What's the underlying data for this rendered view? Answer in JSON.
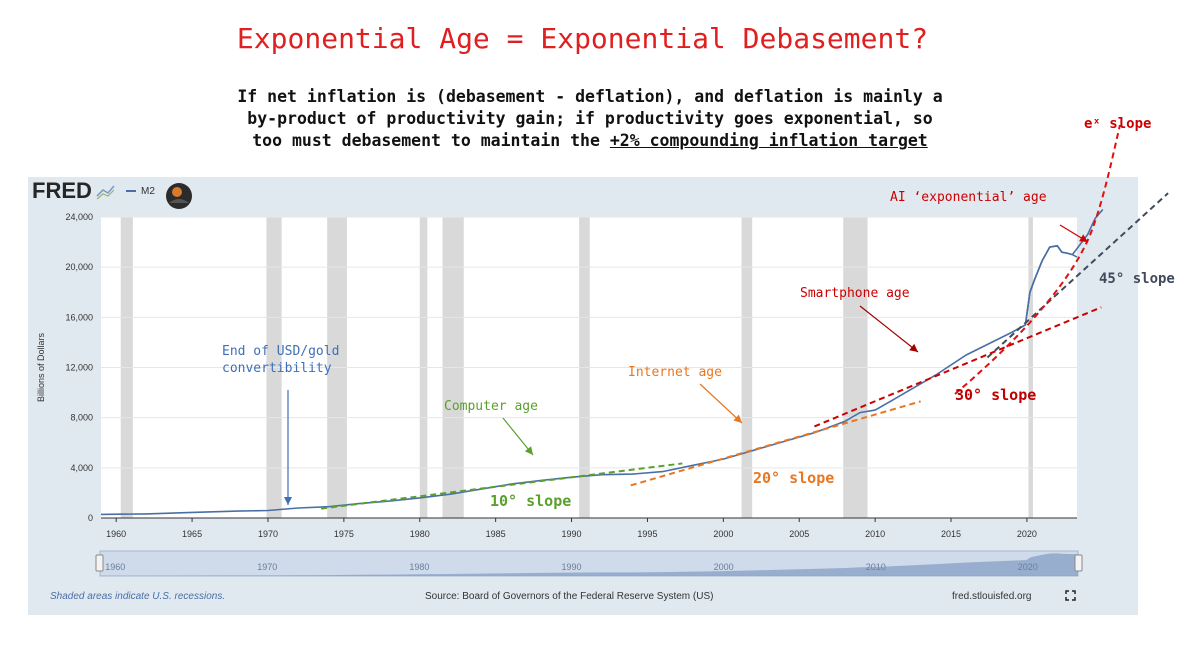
{
  "title": "Exponential Age = Exponential Debasement?",
  "subtitle": {
    "line1": "If net inflation is (debasement - deflation), and deflation is mainly a",
    "line2": "by-product of productivity gain; if productivity goes exponential, so",
    "line3_prefix": "too must debasement to maintain the ",
    "line3_underlined": "+2% compounding inflation target"
  },
  "fred": {
    "logo": "FRED",
    "legend_series": "M2",
    "footer_left": "Shaded areas indicate U.S. recessions.",
    "footer_center": "Source: Board of Governors of the Federal Reserve System (US)",
    "footer_right": "fred.stlouisfed.org",
    "expand_icon": "fullscreen-icon"
  },
  "annotations": {
    "ex_slope": "eˣ slope",
    "ai_age": "AI ‘exponential’ age",
    "slope45": "45° slope",
    "smartphone": "Smartphone age",
    "slope30": "30° slope",
    "internet": "Internet age",
    "slope20": "20° slope",
    "computer": "Computer age",
    "slope10": "10° slope",
    "usd_gold_1": "End of USD/gold",
    "usd_gold_2": "convertibility"
  },
  "colors": {
    "title": "#e02020",
    "series": "#4a6fa5",
    "green": "#5aa02c",
    "orange": "#e87722",
    "red": "#cc0000",
    "blue_annot": "#3f6fb5",
    "gray_dash": "#3f4a5c",
    "recession": "#d9d9d9",
    "panel_bg": "#e1e9f0"
  },
  "chart_data": {
    "type": "line",
    "ylabel": "Billions of Dollars",
    "ylim": [
      0,
      24000
    ],
    "yticks": [
      "0",
      "4,000",
      "8,000",
      "12,000",
      "16,000",
      "20,000",
      "24,000"
    ],
    "xlim": [
      1959,
      2023.3
    ],
    "xticks": [
      "1960",
      "1965",
      "1970",
      "1975",
      "1980",
      "1985",
      "1990",
      "1995",
      "2000",
      "2005",
      "2010",
      "2015",
      "2020"
    ],
    "grid": true,
    "recessions": [
      [
        1960.3,
        1961.1
      ],
      [
        1969.9,
        1970.9
      ],
      [
        1973.9,
        1975.2
      ],
      [
        1980.0,
        1980.5
      ],
      [
        1981.5,
        1982.9
      ],
      [
        1990.5,
        1991.2
      ],
      [
        2001.2,
        2001.9
      ],
      [
        2007.9,
        2009.5
      ],
      [
        2020.1,
        2020.4
      ]
    ],
    "series": [
      {
        "name": "M2",
        "x": [
          1959,
          1962,
          1965,
          1968,
          1970,
          1972,
          1974,
          1976,
          1978,
          1980,
          1982,
          1984,
          1986,
          1988,
          1990,
          1992,
          1994,
          1996,
          1998,
          2000,
          2002,
          2004,
          2006,
          2008,
          2009,
          2010,
          2011,
          2012,
          2014,
          2016,
          2018,
          2019,
          2019.9,
          2020.2,
          2020.5,
          2021,
          2021.5,
          2022,
          2022.3,
          2022.7,
          2023,
          2023.3
        ],
        "y": [
          290,
          330,
          450,
          550,
          600,
          800,
          900,
          1150,
          1350,
          1600,
          1900,
          2300,
          2700,
          3000,
          3250,
          3450,
          3500,
          3700,
          4200,
          4700,
          5400,
          6100,
          6800,
          7700,
          8400,
          8600,
          9300,
          10000,
          11400,
          13000,
          14200,
          14800,
          15400,
          18000,
          19000,
          20500,
          21600,
          21700,
          21200,
          21100,
          21000,
          20800
        ]
      }
    ],
    "overlay_series_window": {
      "x": [
        2019,
        2019.9,
        2020.2,
        2020.5,
        2021,
        2021.5,
        2022,
        2022.3,
        2022.7,
        2023,
        2023.5,
        2024,
        2024.5,
        2025
      ],
      "y": [
        14800,
        15400,
        18000,
        19000,
        20500,
        21600,
        21700,
        21200,
        21100,
        21000,
        21800,
        22600,
        23900,
        24600
      ]
    },
    "range_selector": {
      "labels": [
        "1960",
        "1970",
        "1980",
        "1990",
        "2000",
        "2010",
        "2020"
      ]
    }
  }
}
